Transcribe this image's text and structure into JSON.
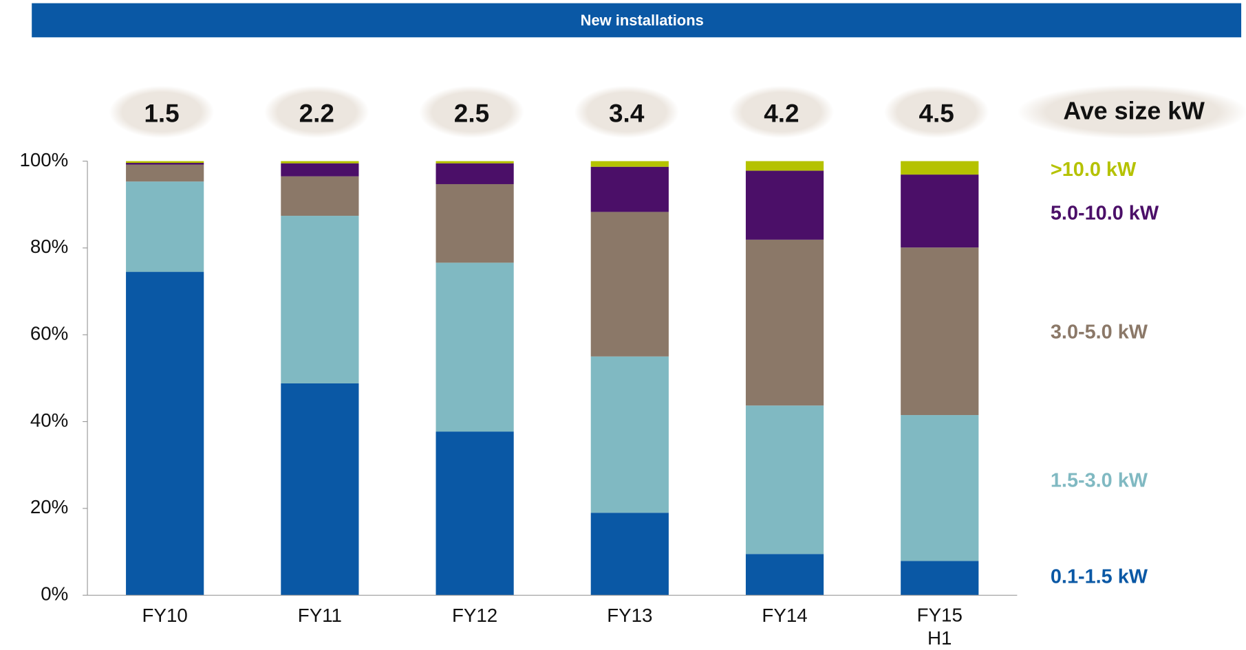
{
  "chart_data": {
    "type": "stacked_bar",
    "title": "New installations",
    "categories": [
      "FY10",
      "FY11",
      "FY12",
      "FY13",
      "FY14",
      "FY15 H1"
    ],
    "series": [
      {
        "name": "0.1-1.5 kW",
        "color": "#0a58a5",
        "values": [
          74.5,
          48.8,
          37.7,
          19.0,
          9.5,
          7.9
        ]
      },
      {
        "name": "1.5-3.0 kW",
        "color": "#80b9c2",
        "values": [
          20.8,
          38.6,
          38.9,
          36.0,
          34.2,
          33.6
        ]
      },
      {
        "name": "3.0-5.0 kW",
        "color": "#8b7868",
        "values": [
          3.9,
          9.1,
          18.1,
          33.3,
          38.2,
          38.6
        ]
      },
      {
        "name": "5.0-10.0 kW",
        "color": "#4b0f68",
        "values": [
          0.4,
          3.0,
          4.8,
          10.4,
          15.9,
          16.8
        ]
      },
      {
        "name": ">10.0 kW",
        "color": "#b5c200",
        "values": [
          0.4,
          0.5,
          0.5,
          1.3,
          2.2,
          3.1
        ]
      }
    ],
    "avg_size_label": "Ave size kW",
    "avg_sizes": [
      1.5,
      2.2,
      2.5,
      3.4,
      4.2,
      4.5
    ],
    "ylim": [
      0,
      100
    ],
    "yticks": [
      {
        "value": 0,
        "label": "0%"
      },
      {
        "value": 20,
        "label": "20%"
      },
      {
        "value": 40,
        "label": "40%"
      },
      {
        "value": 60,
        "label": "60%"
      },
      {
        "value": 80,
        "label": "80%"
      },
      {
        "value": 100,
        "label": "100%"
      }
    ]
  }
}
